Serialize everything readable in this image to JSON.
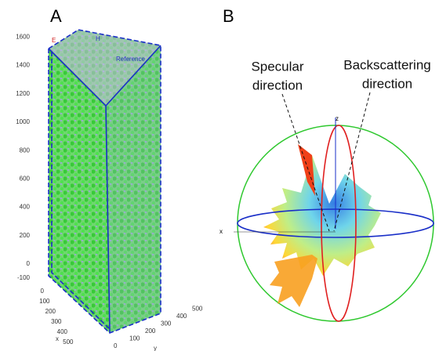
{
  "panels": [
    {
      "label": "A",
      "field_e": "E",
      "field_h": "H",
      "reference": "Reference",
      "vertical_axis": {
        "ticks": [
          1600,
          1400,
          1200,
          1000,
          800,
          600,
          400,
          200,
          0,
          -100
        ]
      },
      "x_axis": {
        "label": "x",
        "ticks": [
          0,
          100,
          200,
          300,
          400,
          500
        ]
      },
      "y_axis": {
        "label": "y",
        "ticks": [
          0,
          100,
          200,
          300,
          400,
          500
        ]
      }
    },
    {
      "label": "B",
      "specular": [
        "Specular",
        "direction"
      ],
      "backscattering": [
        "Backscattering",
        "direction"
      ],
      "z_label": "z",
      "x_label": "x"
    }
  ]
}
